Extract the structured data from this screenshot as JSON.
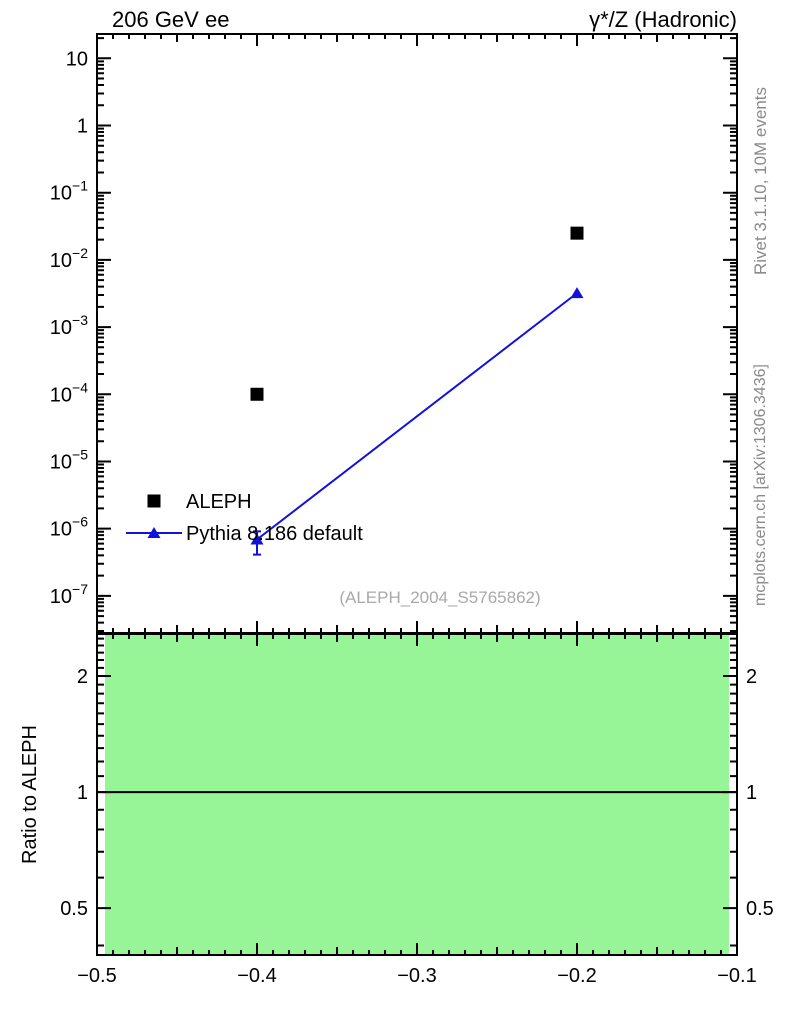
{
  "header": {
    "left_title": "206 GeV ee",
    "right_title": "γ*/Z (Hadronic)"
  },
  "watermarks": {
    "rivet": "Rivet 3.1.10, 10M events",
    "mcplots": "mcplots.cern.ch [arXiv:1306.3436]",
    "analysis": "(ALEPH_2004_S5765862)"
  },
  "colors": {
    "axis": "#000000",
    "aleph_marker": "#000000",
    "pythia_blue": "#1111dd",
    "band_green": "#97f597",
    "gray_watermark": "#8a8a8a",
    "gray_analysis": "#a9a9a9"
  },
  "chart_data": [
    {
      "type": "scatter",
      "panel": "main",
      "x_range": [
        -0.5,
        -0.1
      ],
      "x_major_ticks": [
        -0.5,
        -0.4,
        -0.3,
        -0.2,
        -0.1
      ],
      "x_tick_labels": [
        "−0.5",
        "−0.4",
        "−0.3",
        "−0.2",
        "−0.1"
      ],
      "x_minor_step": 0.01,
      "y_scale": "log",
      "y_range": [
        2.8e-08,
        23
      ],
      "y_tick_exponents": [
        1,
        0,
        -1,
        -2,
        -3,
        -4,
        -5,
        -6,
        -7
      ],
      "grid": false,
      "legend_position": "center-left",
      "series": [
        {
          "name": "ALEPH",
          "marker": "square",
          "color": "#000000",
          "line": false,
          "points": [
            {
              "x": -0.4,
              "y": 0.0001
            },
            {
              "x": -0.2,
              "y": 0.025
            }
          ]
        },
        {
          "name": "Pythia 8.186 default",
          "marker": "triangle",
          "color": "#1111dd",
          "line": true,
          "points": [
            {
              "x": -0.4,
              "y": 6.9e-07,
              "y_lo": 4.1e-07,
              "y_hi": 9.1e-07
            },
            {
              "x": -0.2,
              "y": 0.0032
            }
          ]
        }
      ]
    },
    {
      "type": "ratio",
      "panel": "ratio",
      "ylabel": "Ratio to ALEPH",
      "x_range": [
        -0.5,
        -0.1
      ],
      "y_scale": "log",
      "y_range": [
        0.378,
        2.57
      ],
      "y_major_ticks": [
        0.5,
        1,
        2
      ],
      "y_tick_labels": [
        "0.5",
        "1",
        "2"
      ],
      "y_minor_step": 0.1,
      "band": {
        "x0": -0.495,
        "x1": -0.105,
        "color": "#97f597"
      },
      "reference_line": 1.0
    }
  ]
}
